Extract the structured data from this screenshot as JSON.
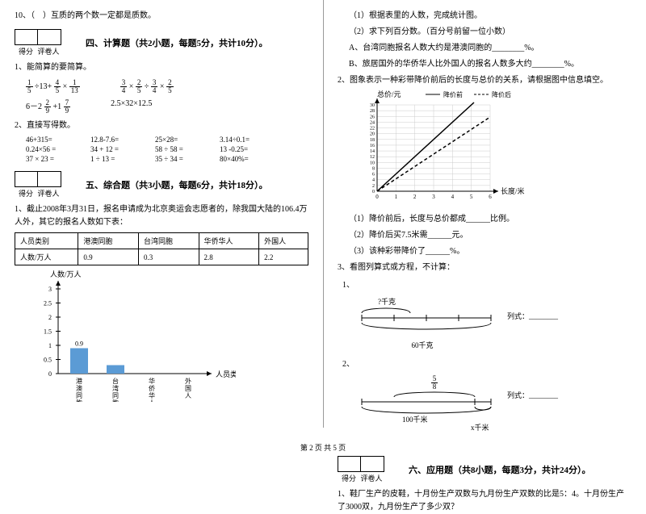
{
  "footer": "第 2 页 共 5 页",
  "score": {
    "col1": "得分",
    "col2": "评卷人"
  },
  "q10": "10、（　）互质的两个数一定都是质数。",
  "sec4": {
    "title": "四、计算题（共2小题，每题5分，共计10分）。",
    "q1": "1、能简算的要简算。",
    "expr1a": {
      "a": "1",
      "b": "5",
      "op": "÷13+",
      "c": "4",
      "d": "5",
      "e": "1",
      "f": "13"
    },
    "expr1b": {
      "a": "3",
      "b": "4",
      "c": "2",
      "d": "5",
      "e": "3",
      "f": "4",
      "g": "2",
      "h": "5"
    },
    "expr2a": {
      "a": "2",
      "b": "9",
      "c": "7",
      "d": "9"
    },
    "expr2b": "2.5×32×12.5",
    "q2": "2、直接写得数。",
    "items": [
      "46+315=",
      "12.8-7.6=",
      "25×28=",
      "3.14÷0.1=",
      "0.24×56 =",
      "34 + 12 =",
      "58 ÷ 58  =",
      "13 -0.25=",
      "37 × 23 =",
      "1 ÷ 13 =",
      "35  ÷ 34 =",
      "80×40%="
    ]
  },
  "sec5": {
    "title": "五、综合题（共3小题，每题6分，共计18分）。",
    "q1": "1、截止2008年3月31日，报名申请成为北京奥运会志愿者的，除我国大陆的106.4万人外，其它的报名人数如下表：",
    "table": {
      "h1": "人员类别",
      "h2": "港澳同胞",
      "h3": "台湾同胞",
      "h4": "华侨华人",
      "h5": "外国人",
      "r1": "人数/万人",
      "v1": "0.9",
      "v2": "0.3",
      "v3": "2.8",
      "v4": "2.2"
    },
    "chart": {
      "ylabel": "人数/万人",
      "xlabel": "人员类别",
      "yticks": [
        "3",
        "2.5",
        "2",
        "1.5",
        "1",
        "0.5",
        "0"
      ],
      "cats": [
        "港澳同胞",
        "台湾同胞",
        "华侨华人",
        "外国人"
      ],
      "vals": [
        0.9,
        0.3,
        0,
        0
      ],
      "bar_color": "#5b9bd5",
      "val_label": "0.9"
    },
    "right": {
      "r1": "（1）根据表里的人数，完成统计图。",
      "r2": "（2）求下列百分数。（百分号前留一位小数）",
      "r3": "A、台湾同胞报名人数大约是港澳同胞的________%。",
      "r4": "B、旅居国外的华侨华人比外国人的报名人数多大约________%。"
    },
    "q2": "2、图象表示一种彩带降价前后的长度与总价的关系，请根据图中信息填空。",
    "linechart": {
      "ylabel": "总价/元",
      "xlabel": "长度/米",
      "legend1": "降价前",
      "legend2": "降价后",
      "yticks": [
        "30",
        "28",
        "26",
        "24",
        "22",
        "20",
        "18",
        "16",
        "14",
        "12",
        "10",
        "8",
        "6",
        "4",
        "2",
        "0"
      ],
      "xticks": [
        "0",
        "1",
        "2",
        "3",
        "4",
        "5",
        "6"
      ]
    },
    "q2a": "（1）降价前后，长度与总价都成______比例。",
    "q2b": "（2）降价后买7.5米需______元。",
    "q2c": "（3）该种彩带降价了______%。",
    "q3": "3、看图列算式或方程，不计算：",
    "d1": {
      "top": "?千克",
      "bottom": "60千克",
      "side": "列式：________"
    },
    "d2": {
      "top_n": "5",
      "top_d": "8",
      "bottom": "100千米",
      "extra": "x千米",
      "side": "列式：________"
    }
  },
  "sec6": {
    "title": "六、应用题（共8小题，每题3分，共计24分）。",
    "q1": "1、鞋厂生产的皮鞋，十月份生产双数与九月份生产双数的比是5：4。十月份生产了3000双，九月份生产了多少双？"
  }
}
